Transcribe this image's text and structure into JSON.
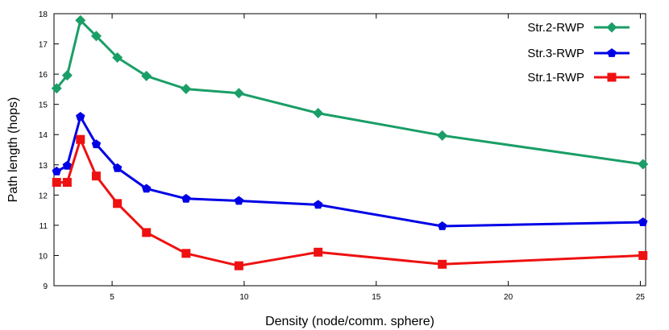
{
  "chart_data": {
    "type": "line",
    "xlabel": "Density (node/comm. sphere)",
    "ylabel": "Path length (hops)",
    "xlim": [
      2.8,
      25.2
    ],
    "ylim": [
      9,
      18
    ],
    "x_ticks": [
      5,
      10,
      15,
      20,
      25
    ],
    "y_ticks": [
      9,
      10,
      11,
      12,
      13,
      14,
      15,
      16,
      17,
      18
    ],
    "grid": false,
    "legend_position": "top-right",
    "x": [
      2.9,
      3.3,
      3.8,
      4.4,
      5.2,
      6.3,
      7.8,
      9.8,
      12.8,
      17.5,
      25.1
    ],
    "series": [
      {
        "name": "Str.2-RWP",
        "color": "#1a9e67",
        "marker": "diamond",
        "values": [
          15.53,
          15.96,
          17.78,
          17.26,
          16.55,
          15.94,
          15.51,
          15.37,
          14.71,
          13.97,
          13.02
        ]
      },
      {
        "name": "Str.3-RWP",
        "color": "#0000e6",
        "marker": "pentagon",
        "values": [
          12.78,
          12.97,
          14.59,
          13.68,
          12.89,
          12.21,
          11.88,
          11.81,
          11.68,
          10.97,
          11.1
        ]
      },
      {
        "name": "Str.1-RWP",
        "color": "#ee1111",
        "marker": "square",
        "values": [
          12.42,
          12.42,
          13.84,
          12.63,
          11.72,
          10.76,
          10.07,
          9.66,
          10.11,
          9.71,
          10.0
        ]
      }
    ]
  }
}
